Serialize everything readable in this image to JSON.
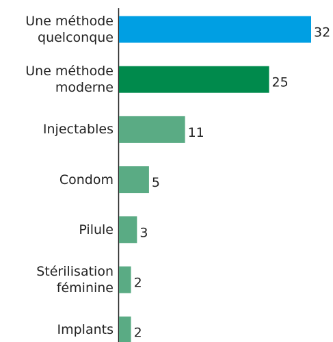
{
  "chart_data": {
    "type": "bar",
    "orientation": "horizontal",
    "categories": [
      "Une méthode\nquelconque",
      "Une méthode\nmoderne",
      "Injectables",
      "Condom",
      "Pilule",
      "Stérilisation\nféminine",
      "Implants"
    ],
    "values": [
      32,
      25,
      11,
      5,
      3,
      2,
      2
    ],
    "colors": [
      "#009fe3",
      "#008a4c",
      "#5aab84",
      "#5aab84",
      "#5aab84",
      "#5aab84",
      "#5aab84"
    ]
  }
}
